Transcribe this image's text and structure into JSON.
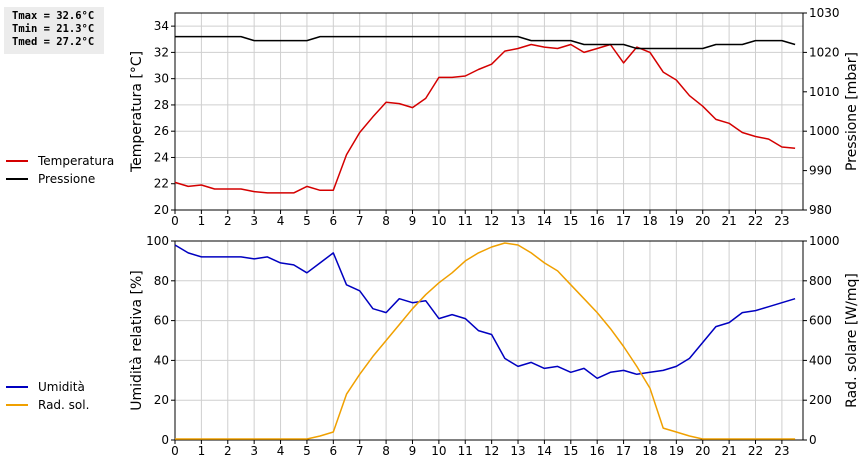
{
  "stats": {
    "tmax": "Tmax = 32.6°C",
    "tmin": "Tmin = 21.3°C",
    "tmed": "Tmed = 27.2°C"
  },
  "chart_data": [
    {
      "type": "line",
      "x_ticks": [
        "0",
        "1",
        "2",
        "3",
        "4",
        "5",
        "6",
        "7",
        "8",
        "9",
        "10",
        "11",
        "12",
        "13",
        "14",
        "15",
        "16",
        "17",
        "18",
        "19",
        "20",
        "21",
        "22",
        "23"
      ],
      "xlim": [
        0,
        23.8
      ],
      "ylabel_left": "Temperatura [°C]",
      "ylabel_right": "Pressione [mbar]",
      "ylim_left": [
        20,
        35
      ],
      "ylim_right": [
        980,
        1030
      ],
      "yticks_left": [
        20,
        22,
        24,
        26,
        28,
        30,
        32,
        34
      ],
      "yticks_right": [
        980,
        990,
        1000,
        1010,
        1020,
        1030
      ],
      "grid": true,
      "legend_position": "left",
      "series": [
        {
          "name": "Temperatura",
          "axis": "left",
          "color": "#d40000",
          "x": [
            0,
            0.5,
            1,
            1.5,
            2,
            2.5,
            3,
            3.5,
            4,
            4.5,
            5,
            5.5,
            6,
            6.5,
            7,
            7.5,
            8,
            8.5,
            9,
            9.5,
            10,
            10.5,
            11,
            11.5,
            12,
            12.5,
            13,
            13.5,
            14,
            14.5,
            15,
            15.5,
            16,
            16.5,
            17,
            17.5,
            18,
            18.5,
            19,
            19.5,
            20,
            20.5,
            21,
            21.5,
            22,
            22.5,
            23,
            23.5
          ],
          "values": [
            22.1,
            21.8,
            21.9,
            21.6,
            21.6,
            21.6,
            21.4,
            21.3,
            21.3,
            21.3,
            21.8,
            21.5,
            21.5,
            24.2,
            25.9,
            27.1,
            28.2,
            28.1,
            27.8,
            28.5,
            30.1,
            30.1,
            30.2,
            30.7,
            31.1,
            32.1,
            32.3,
            32.6,
            32.4,
            32.3,
            32.6,
            32.0,
            32.3,
            32.6,
            31.2,
            32.4,
            32.0,
            30.5,
            29.9,
            28.7,
            27.9,
            26.9,
            26.6,
            25.9,
            25.6,
            25.4,
            24.8,
            24.7
          ]
        },
        {
          "name": "Pressione",
          "axis": "right",
          "color": "#000000",
          "x": [
            0,
            2.5,
            3,
            5,
            5.5,
            13,
            13.5,
            15,
            15.5,
            17,
            17.5,
            20,
            20.5,
            21.5,
            22,
            23,
            23.5
          ],
          "values": [
            1024,
            1024,
            1023,
            1023,
            1024,
            1024,
            1023,
            1023,
            1022,
            1022,
            1021,
            1021,
            1022,
            1022,
            1023,
            1023,
            1022
          ]
        }
      ]
    },
    {
      "type": "line",
      "x_ticks": [
        "0",
        "1",
        "2",
        "3",
        "4",
        "5",
        "6",
        "7",
        "8",
        "9",
        "10",
        "11",
        "12",
        "13",
        "14",
        "15",
        "16",
        "17",
        "18",
        "19",
        "20",
        "21",
        "22",
        "23"
      ],
      "xlim": [
        0,
        23.8
      ],
      "ylabel_left": "Umidità relativa [%]",
      "ylabel_right": "Rad. solare [W/mq]",
      "ylim_left": [
        0,
        100
      ],
      "ylim_right": [
        0,
        1000
      ],
      "yticks_left": [
        0,
        20,
        40,
        60,
        80,
        100
      ],
      "yticks_right": [
        0,
        200,
        400,
        600,
        800,
        1000
      ],
      "grid": true,
      "legend_position": "left",
      "series": [
        {
          "name": "Umidità",
          "axis": "left",
          "color": "#0000c0",
          "x": [
            0,
            0.5,
            1,
            1.5,
            2,
            2.5,
            3,
            3.5,
            4,
            4.5,
            5,
            5.5,
            6,
            6.5,
            7,
            7.5,
            8,
            8.5,
            9,
            9.5,
            10,
            10.5,
            11,
            11.5,
            12,
            12.5,
            13,
            13.5,
            14,
            14.5,
            15,
            15.5,
            16,
            16.5,
            17,
            17.5,
            18,
            18.5,
            19,
            19.5,
            20,
            20.5,
            21,
            21.5,
            22,
            22.5,
            23,
            23.5
          ],
          "values": [
            98,
            94,
            92,
            92,
            92,
            92,
            91,
            92,
            89,
            88,
            84,
            89,
            94,
            78,
            75,
            66,
            64,
            71,
            69,
            70,
            61,
            63,
            61,
            55,
            53,
            41,
            37,
            39,
            36,
            37,
            34,
            36,
            31,
            34,
            35,
            33,
            34,
            35,
            37,
            41,
            49,
            57,
            59,
            64,
            65,
            67,
            69,
            71
          ]
        },
        {
          "name": "Rad. sol.",
          "axis": "right",
          "color": "#f0a000",
          "x": [
            0,
            4.5,
            5,
            5.5,
            6,
            6.5,
            7,
            7.5,
            8,
            8.5,
            9,
            9.5,
            10,
            10.5,
            11,
            11.5,
            12,
            12.5,
            13,
            13.5,
            14,
            14.5,
            15,
            15.5,
            16,
            16.5,
            17,
            17.5,
            18,
            18.5,
            19,
            19.5,
            20,
            20.5,
            21,
            22,
            23,
            23.5
          ],
          "values": [
            5,
            5,
            5,
            20,
            40,
            230,
            330,
            420,
            500,
            580,
            660,
            730,
            790,
            840,
            900,
            940,
            970,
            990,
            980,
            940,
            890,
            850,
            780,
            710,
            640,
            560,
            470,
            370,
            260,
            60,
            40,
            20,
            5,
            5,
            5,
            5,
            5,
            5
          ]
        }
      ]
    }
  ]
}
